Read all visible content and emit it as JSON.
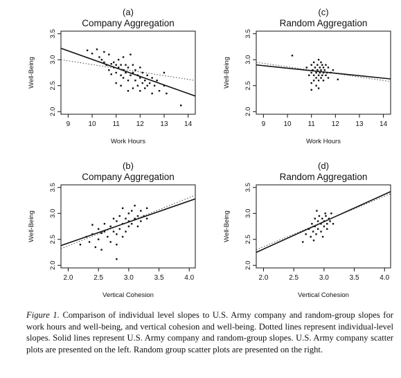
{
  "chart_data": [
    {
      "type": "scatter",
      "letter": "(a)",
      "title": "Company Aggregation",
      "xlabel": "Work Hours",
      "ylabel": "Well-Being",
      "xlim": [
        8.7,
        14.3
      ],
      "ylim": [
        1.95,
        3.55
      ],
      "xticks": [
        9,
        10,
        11,
        12,
        13,
        14
      ],
      "yticks": [
        2.0,
        2.5,
        3.0,
        3.5
      ],
      "xtick_labels": [
        "9",
        "10",
        "11",
        "12",
        "13",
        "14"
      ],
      "ytick_labels": [
        "2.0",
        "2.5",
        "3.0",
        "3.5"
      ],
      "series": [
        {
          "type": "scatter",
          "points": [
            [
              9.8,
              3.18
            ],
            [
              10.0,
              3.12
            ],
            [
              10.2,
              3.2
            ],
            [
              10.3,
              3.05
            ],
            [
              10.4,
              3.0
            ],
            [
              10.5,
              3.15
            ],
            [
              10.5,
              2.95
            ],
            [
              10.6,
              2.9
            ],
            [
              10.7,
              3.1
            ],
            [
              10.7,
              2.8
            ],
            [
              10.8,
              2.92
            ],
            [
              10.8,
              2.72
            ],
            [
              10.9,
              2.95
            ],
            [
              10.9,
              2.85
            ],
            [
              11.0,
              2.9
            ],
            [
              11.0,
              2.75
            ],
            [
              11.0,
              2.55
            ],
            [
              11.1,
              3.0
            ],
            [
              11.1,
              2.85
            ],
            [
              11.2,
              2.9
            ],
            [
              11.2,
              2.7
            ],
            [
              11.2,
              2.5
            ],
            [
              11.3,
              3.05
            ],
            [
              11.3,
              2.8
            ],
            [
              11.3,
              2.65
            ],
            [
              11.4,
              2.9
            ],
            [
              11.4,
              2.75
            ],
            [
              11.5,
              2.85
            ],
            [
              11.5,
              2.6
            ],
            [
              11.5,
              2.4
            ],
            [
              11.6,
              3.1
            ],
            [
              11.6,
              2.7
            ],
            [
              11.7,
              2.9
            ],
            [
              11.7,
              2.75
            ],
            [
              11.7,
              2.45
            ],
            [
              11.8,
              2.8
            ],
            [
              11.8,
              2.6
            ],
            [
              11.9,
              2.7
            ],
            [
              11.9,
              2.5
            ],
            [
              12.0,
              2.85
            ],
            [
              12.0,
              2.65
            ],
            [
              12.0,
              2.4
            ],
            [
              12.1,
              2.75
            ],
            [
              12.1,
              2.55
            ],
            [
              12.2,
              2.6
            ],
            [
              12.2,
              2.45
            ],
            [
              12.3,
              2.7
            ],
            [
              12.3,
              2.5
            ],
            [
              12.4,
              2.55
            ],
            [
              12.5,
              2.65
            ],
            [
              12.5,
              2.35
            ],
            [
              12.6,
              2.5
            ],
            [
              12.7,
              2.6
            ],
            [
              12.8,
              2.4
            ],
            [
              13.0,
              2.75
            ],
            [
              13.0,
              2.5
            ],
            [
              13.1,
              2.35
            ],
            [
              13.7,
              2.12
            ]
          ]
        },
        {
          "type": "line",
          "style": "solid",
          "x": [
            8.7,
            14.3
          ],
          "y": [
            3.22,
            2.3
          ]
        },
        {
          "type": "line",
          "style": "dotted",
          "x": [
            8.7,
            14.3
          ],
          "y": [
            3.0,
            2.6
          ]
        }
      ]
    },
    {
      "type": "scatter",
      "letter": "(c)",
      "title": "Random Aggregation",
      "xlabel": "Work Hours",
      "ylabel": "Well-Being",
      "xlim": [
        8.7,
        14.3
      ],
      "ylim": [
        1.95,
        3.55
      ],
      "xticks": [
        9,
        10,
        11,
        12,
        13,
        14
      ],
      "yticks": [
        2.0,
        2.5,
        3.0,
        3.5
      ],
      "xtick_labels": [
        "9",
        "10",
        "11",
        "12",
        "13",
        "14"
      ],
      "ytick_labels": [
        "2.0",
        "2.5",
        "3.0",
        "3.5"
      ],
      "series": [
        {
          "type": "scatter",
          "points": [
            [
              10.2,
              3.08
            ],
            [
              10.8,
              2.85
            ],
            [
              10.9,
              2.7
            ],
            [
              11.0,
              2.9
            ],
            [
              11.0,
              2.75
            ],
            [
              11.0,
              2.55
            ],
            [
              11.05,
              2.8
            ],
            [
              11.1,
              2.95
            ],
            [
              11.1,
              2.7
            ],
            [
              11.1,
              2.6
            ],
            [
              11.15,
              2.85
            ],
            [
              11.2,
              2.75
            ],
            [
              11.2,
              2.65
            ],
            [
              11.2,
              2.5
            ],
            [
              11.25,
              2.9
            ],
            [
              11.25,
              2.8
            ],
            [
              11.3,
              3.0
            ],
            [
              11.3,
              2.7
            ],
            [
              11.3,
              2.6
            ],
            [
              11.35,
              2.85
            ],
            [
              11.35,
              2.75
            ],
            [
              11.4,
              2.95
            ],
            [
              11.4,
              2.8
            ],
            [
              11.4,
              2.65
            ],
            [
              11.45,
              2.9
            ],
            [
              11.45,
              2.7
            ],
            [
              11.5,
              2.85
            ],
            [
              11.5,
              2.75
            ],
            [
              11.5,
              2.6
            ],
            [
              11.55,
              2.8
            ],
            [
              11.6,
              2.9
            ],
            [
              11.6,
              2.7
            ],
            [
              11.65,
              2.75
            ],
            [
              11.7,
              2.85
            ],
            [
              11.7,
              2.65
            ],
            [
              11.8,
              2.75
            ],
            [
              11.9,
              2.8
            ],
            [
              12.1,
              2.62
            ],
            [
              11.0,
              2.42
            ],
            [
              11.3,
              2.45
            ]
          ]
        },
        {
          "type": "line",
          "style": "solid",
          "x": [
            8.7,
            14.3
          ],
          "y": [
            2.9,
            2.63
          ]
        },
        {
          "type": "line",
          "style": "dotted",
          "x": [
            8.7,
            14.3
          ],
          "y": [
            2.95,
            2.58
          ]
        }
      ]
    },
    {
      "type": "scatter",
      "letter": "(b)",
      "title": "Company Aggregation",
      "xlabel": "Vertical Cohesion",
      "ylabel": "Well-Being",
      "xlim": [
        1.88,
        4.1
      ],
      "ylim": [
        1.95,
        3.55
      ],
      "xticks": [
        2.0,
        2.5,
        3.0,
        3.5,
        4.0
      ],
      "yticks": [
        2.0,
        2.5,
        3.0,
        3.5
      ],
      "xtick_labels": [
        "2.0",
        "2.5",
        "3.0",
        "3.5",
        "4.0"
      ],
      "ytick_labels": [
        "2.0",
        "2.5",
        "3.0",
        "3.5"
      ],
      "series": [
        {
          "type": "scatter",
          "points": [
            [
              2.2,
              2.4
            ],
            [
              2.3,
              2.55
            ],
            [
              2.35,
              2.45
            ],
            [
              2.4,
              2.6
            ],
            [
              2.45,
              2.35
            ],
            [
              2.5,
              2.7
            ],
            [
              2.5,
              2.5
            ],
            [
              2.55,
              2.3
            ],
            [
              2.6,
              2.65
            ],
            [
              2.6,
              2.8
            ],
            [
              2.65,
              2.55
            ],
            [
              2.7,
              2.75
            ],
            [
              2.7,
              2.45
            ],
            [
              2.75,
              2.9
            ],
            [
              2.75,
              2.65
            ],
            [
              2.8,
              2.85
            ],
            [
              2.8,
              2.6
            ],
            [
              2.8,
              2.4
            ],
            [
              2.85,
              2.95
            ],
            [
              2.85,
              2.7
            ],
            [
              2.9,
              2.8
            ],
            [
              2.9,
              2.55
            ],
            [
              2.9,
              3.1
            ],
            [
              2.95,
              2.9
            ],
            [
              2.95,
              2.65
            ],
            [
              3.0,
              3.0
            ],
            [
              3.0,
              2.75
            ],
            [
              3.0,
              2.85
            ],
            [
              3.05,
              3.05
            ],
            [
              3.05,
              2.8
            ],
            [
              3.1,
              2.9
            ],
            [
              3.1,
              3.15
            ],
            [
              3.15,
              2.95
            ],
            [
              3.15,
              2.75
            ],
            [
              3.2,
              3.05
            ],
            [
              3.2,
              2.85
            ],
            [
              3.25,
              2.95
            ],
            [
              3.3,
              3.1
            ],
            [
              3.3,
              2.9
            ],
            [
              2.8,
              2.12
            ],
            [
              2.55,
              2.62
            ],
            [
              2.4,
              2.78
            ]
          ]
        },
        {
          "type": "line",
          "style": "solid",
          "x": [
            1.88,
            4.1
          ],
          "y": [
            2.38,
            3.28
          ]
        },
        {
          "type": "line",
          "style": "dotted",
          "x": [
            1.88,
            4.1
          ],
          "y": [
            2.32,
            3.35
          ]
        }
      ]
    },
    {
      "type": "scatter",
      "letter": "(d)",
      "title": "Random Aggregation",
      "xlabel": "Vertical Cohesion",
      "ylabel": "Well-Being",
      "xlim": [
        1.88,
        4.1
      ],
      "ylim": [
        1.95,
        3.55
      ],
      "xticks": [
        2.0,
        2.5,
        3.0,
        3.5,
        4.0
      ],
      "yticks": [
        2.0,
        2.5,
        3.0,
        3.5
      ],
      "xtick_labels": [
        "2.0",
        "2.5",
        "3.0",
        "3.5",
        "4.0"
      ],
      "ytick_labels": [
        "2.0",
        "2.5",
        "3.0",
        "3.5"
      ],
      "series": [
        {
          "type": "scatter",
          "points": [
            [
              2.65,
              2.45
            ],
            [
              2.7,
              2.6
            ],
            [
              2.75,
              2.7
            ],
            [
              2.78,
              2.55
            ],
            [
              2.8,
              2.8
            ],
            [
              2.82,
              2.65
            ],
            [
              2.85,
              2.75
            ],
            [
              2.85,
              2.9
            ],
            [
              2.87,
              2.6
            ],
            [
              2.9,
              2.85
            ],
            [
              2.9,
              2.7
            ],
            [
              2.92,
              2.95
            ],
            [
              2.95,
              2.8
            ],
            [
              2.95,
              2.65
            ],
            [
              2.97,
              2.9
            ],
            [
              3.0,
              2.75
            ],
            [
              3.0,
              2.85
            ],
            [
              3.02,
              3.0
            ],
            [
              3.05,
              2.8
            ],
            [
              3.05,
              2.7
            ],
            [
              3.08,
              2.9
            ],
            [
              3.1,
              2.85
            ],
            [
              3.12,
              3.0
            ],
            [
              3.15,
              2.8
            ],
            [
              2.88,
              3.05
            ],
            [
              2.98,
              2.55
            ],
            [
              2.83,
              2.48
            ],
            [
              3.03,
              2.95
            ]
          ]
        },
        {
          "type": "line",
          "style": "solid",
          "x": [
            1.88,
            4.1
          ],
          "y": [
            2.25,
            3.42
          ]
        },
        {
          "type": "line",
          "style": "dotted",
          "x": [
            1.88,
            4.1
          ],
          "y": [
            2.3,
            3.38
          ]
        }
      ]
    }
  ],
  "caption": {
    "label": "Figure 1.",
    "text": "Comparison of individual level slopes to U.S. Army company and random-group slopes for work hours and well-being, and vertical  cohesion and well-being. Dotted lines represent individual-level slopes. Solid lines represent U.S. Army company and random-group slopes. U.S. Army company scatter plots are presented on the left. Random group scatter plots are presented on the right."
  }
}
